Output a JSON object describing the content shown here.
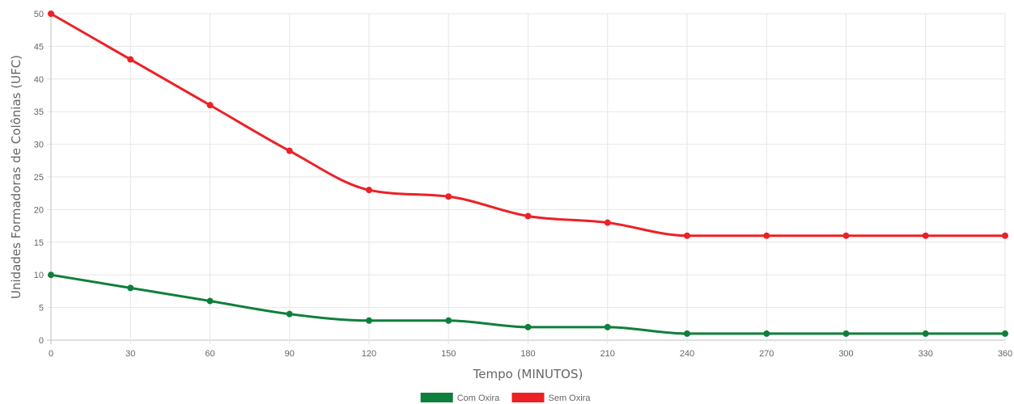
{
  "chart_data": {
    "type": "line",
    "title": "",
    "xlabel": "Tempo (MINUTOS)",
    "ylabel": "Unidades Formadoras de Colônias (UFC)",
    "x": [
      0,
      30,
      60,
      90,
      120,
      150,
      180,
      210,
      240,
      270,
      300,
      330,
      360
    ],
    "xlim": [
      0,
      360
    ],
    "ylim": [
      0,
      50
    ],
    "yticks": [
      0,
      5,
      10,
      15,
      20,
      25,
      30,
      35,
      40,
      45,
      50
    ],
    "grid": true,
    "legend_position": "bottom",
    "series": [
      {
        "name": "Com Oxira",
        "color": "#0f7f3c",
        "values": [
          10,
          8,
          6,
          4,
          3,
          3,
          2,
          2,
          1,
          1,
          1,
          1,
          1
        ]
      },
      {
        "name": "Sem Oxira",
        "color": "#ec2126",
        "values": [
          50,
          43,
          36,
          29,
          23,
          22,
          19,
          18,
          16,
          16,
          16,
          16,
          16
        ]
      }
    ]
  }
}
